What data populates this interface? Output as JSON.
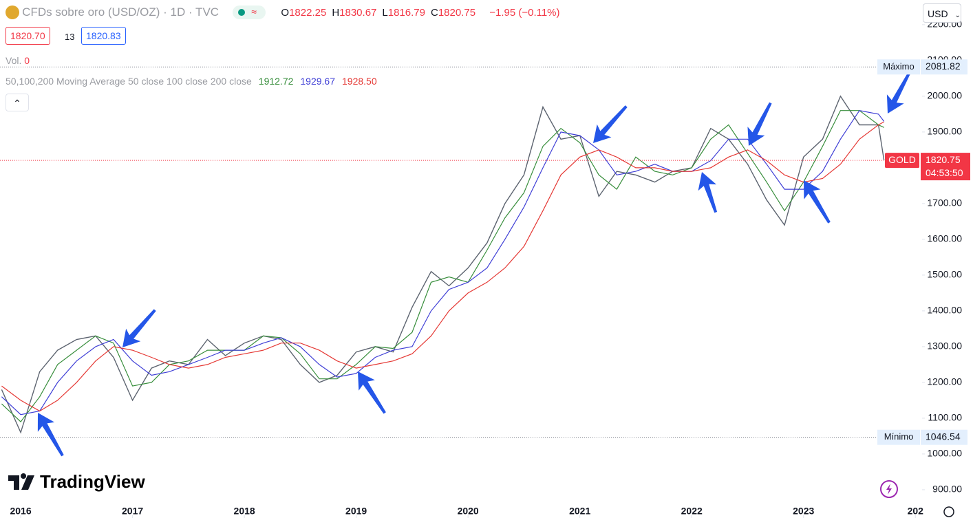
{
  "header": {
    "symbol": "CFDs sobre oro (USD/OZ) · 1D · TVC",
    "ohlc": [
      {
        "label": "O",
        "value": "1822.25"
      },
      {
        "label": "H",
        "value": "1830.67"
      },
      {
        "label": "L",
        "value": "1816.79"
      },
      {
        "label": "C",
        "value": "1820.75"
      }
    ],
    "change": "−1.95 (−0.11%)",
    "bid": "1820.70",
    "spread": "13",
    "ask": "1820.83",
    "volume_label": "Vol.",
    "volume": "0",
    "indicator": "50,100,200 Moving Average 50 close 100 close 200 close",
    "currency": "USD",
    "brand": "TradingView",
    "countdown": "04:53:50",
    "symbol_tag": "GOLD"
  },
  "chart_data": {
    "type": "line",
    "x": [
      2015.83,
      2016.0,
      2016.17,
      2016.33,
      2016.5,
      2016.67,
      2016.83,
      2017.0,
      2017.17,
      2017.33,
      2017.5,
      2017.67,
      2017.83,
      2018.0,
      2018.17,
      2018.33,
      2018.5,
      2018.67,
      2018.83,
      2019.0,
      2019.17,
      2019.33,
      2019.5,
      2019.67,
      2019.83,
      2020.0,
      2020.17,
      2020.33,
      2020.5,
      2020.67,
      2020.83,
      2021.0,
      2021.17,
      2021.33,
      2021.5,
      2021.67,
      2021.83,
      2022.0,
      2022.17,
      2022.33,
      2022.5,
      2022.67,
      2022.83,
      2023.0,
      2023.17,
      2023.33,
      2023.5,
      2023.67,
      2023.72
    ],
    "series": [
      {
        "name": "GOLD",
        "color": "#5d6470",
        "values": [
          1180,
          1060,
          1230,
          1290,
          1320,
          1330,
          1270,
          1150,
          1240,
          1260,
          1250,
          1320,
          1275,
          1310,
          1330,
          1320,
          1250,
          1200,
          1220,
          1285,
          1300,
          1285,
          1410,
          1510,
          1470,
          1520,
          1590,
          1700,
          1780,
          1970,
          1880,
          1890,
          1720,
          1790,
          1780,
          1760,
          1790,
          1800,
          1910,
          1880,
          1810,
          1710,
          1640,
          1830,
          1880,
          2000,
          1920,
          1920,
          1820.75
        ]
      },
      {
        "name": "50 close",
        "color": "#388e3c",
        "values": [
          1140,
          1090,
          1160,
          1250,
          1290,
          1330,
          1310,
          1190,
          1200,
          1250,
          1260,
          1290,
          1290,
          1290,
          1330,
          1325,
          1280,
          1210,
          1210,
          1250,
          1300,
          1295,
          1340,
          1480,
          1495,
          1480,
          1570,
          1660,
          1730,
          1860,
          1910,
          1870,
          1780,
          1740,
          1830,
          1790,
          1780,
          1800,
          1880,
          1920,
          1840,
          1760,
          1680,
          1760,
          1860,
          1960,
          1960,
          1920,
          1912.72
        ]
      },
      {
        "name": "100 close",
        "color": "#3f3fd6",
        "values": [
          1160,
          1110,
          1120,
          1200,
          1260,
          1300,
          1320,
          1260,
          1220,
          1230,
          1250,
          1270,
          1290,
          1290,
          1310,
          1325,
          1300,
          1250,
          1215,
          1225,
          1270,
          1290,
          1300,
          1400,
          1460,
          1480,
          1520,
          1600,
          1690,
          1800,
          1900,
          1890,
          1850,
          1780,
          1790,
          1810,
          1790,
          1790,
          1820,
          1880,
          1880,
          1810,
          1740,
          1740,
          1790,
          1880,
          1960,
          1950,
          1929.67
        ]
      },
      {
        "name": "200 close",
        "color": "#e53935",
        "values": [
          1190,
          1150,
          1120,
          1150,
          1200,
          1260,
          1300,
          1290,
          1270,
          1250,
          1240,
          1250,
          1270,
          1280,
          1290,
          1310,
          1310,
          1290,
          1260,
          1240,
          1250,
          1260,
          1280,
          1330,
          1400,
          1450,
          1480,
          1520,
          1580,
          1680,
          1780,
          1830,
          1850,
          1830,
          1800,
          1800,
          1790,
          1790,
          1800,
          1830,
          1850,
          1820,
          1780,
          1760,
          1770,
          1810,
          1880,
          1920,
          1928.5
        ]
      }
    ],
    "ma_values": [
      "1912.72",
      "1929.67",
      "1928.50"
    ],
    "last_price": "1820.75",
    "max": {
      "label": "Máximo",
      "value": 2081.82,
      "value_label": "2081.82"
    },
    "min": {
      "label": "Mínimo",
      "value": 1046.54,
      "value_label": "1046.54"
    },
    "xlim": [
      2015.815,
      2024.06
    ],
    "xticks": [
      2016,
      2017,
      2018,
      2019,
      2020,
      2021,
      2022,
      2023,
      {
        "value": 2024,
        "label": "202"
      }
    ],
    "ylim": [
      821,
      2269
    ],
    "yticks": [
      {
        "value": 900,
        "label": "900.00"
      },
      {
        "value": 1000,
        "label": "1000.00"
      },
      {
        "value": 1100,
        "label": "1100.00"
      },
      {
        "value": 1200,
        "label": "1200.00"
      },
      {
        "value": 1300,
        "label": "1300.00"
      },
      {
        "value": 1400,
        "label": "1400.00"
      },
      {
        "value": 1500,
        "label": "1500.00"
      },
      {
        "value": 1600,
        "label": "1600.00"
      },
      {
        "value": 1700,
        "label": "1700.00"
      },
      {
        "value": 1800,
        "label": "1800.00"
      },
      {
        "value": 1900,
        "label": "1900.00"
      },
      {
        "value": 2000,
        "label": "2000.00"
      },
      {
        "value": 2100,
        "label": "2100.00"
      },
      {
        "value": 2200,
        "label": "2200.00"
      }
    ],
    "grid": false
  }
}
